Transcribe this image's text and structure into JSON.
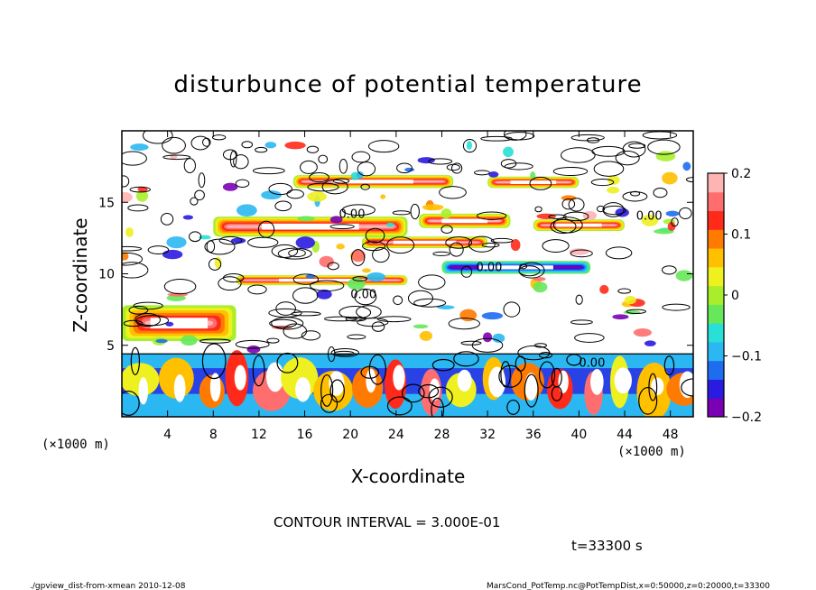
{
  "chart_data": {
    "type": "heatmap",
    "title": "disturbunce of potential temperature",
    "xlabel": "X-coordinate",
    "ylabel": "Z-coordinate",
    "xlim": [
      0,
      50
    ],
    "ylim": [
      0,
      20
    ],
    "x_unit": "(×1000 m)",
    "y_unit": "(×1000 m)",
    "x_ticks": [
      "4",
      "8",
      "12",
      "16",
      "20",
      "24",
      "28",
      "32",
      "36",
      "40",
      "44",
      "48"
    ],
    "y_ticks": [
      "5",
      "10",
      "15"
    ],
    "colorbar": {
      "range": [
        -0.2,
        0.2
      ],
      "labels": [
        "0.2",
        "0.1",
        "0",
        "−0.1",
        "−0.2"
      ],
      "colors": [
        "#7b00b4",
        "#2a1be0",
        "#1e6cf0",
        "#2bb8f2",
        "#28e0d6",
        "#66e85a",
        "#a8ee2a",
        "#eef020",
        "#ffc000",
        "#ff7a00",
        "#ff2a1a",
        "#ff6e6e",
        "#ffb4b4"
      ]
    },
    "contour_interval": "CONTOUR INTERVAL = 3.000E-01",
    "contour_labels": [
      "0.00",
      "0.00",
      "0.00",
      "0.00",
      "0.00"
    ],
    "bands": [
      {
        "x": [
          15,
          29
        ],
        "z": [
          16.0,
          16.9
        ],
        "sign": 1
      },
      {
        "x": [
          32,
          40
        ],
        "z": [
          16.0,
          16.8
        ],
        "sign": 1
      },
      {
        "x": [
          8,
          25
        ],
        "z": [
          12.6,
          14.0
        ],
        "sign": 1
      },
      {
        "x": [
          26,
          34
        ],
        "z": [
          13.2,
          14.2
        ],
        "sign": 1
      },
      {
        "x": [
          28,
          41
        ],
        "z": [
          10.0,
          10.9
        ],
        "sign": -1
      },
      {
        "x": [
          21,
          32
        ],
        "z": [
          11.8,
          12.6
        ],
        "sign": 1
      },
      {
        "x": [
          0,
          10
        ],
        "z": [
          5.3,
          7.8
        ],
        "sign": 1
      },
      {
        "x": [
          10,
          25
        ],
        "z": [
          9.2,
          9.9
        ],
        "sign": 1
      },
      {
        "x": [
          36,
          44
        ],
        "z": [
          13.0,
          13.8
        ],
        "sign": 1
      }
    ]
  },
  "annotations": {
    "time": "t=33300 s",
    "footer_left": "./gpview_dist-from-xmean   2010-12-08",
    "footer_right": "MarsCond_PotTemp.nc@PotTempDist,x=0:50000,z=0:20000,t=33300"
  }
}
